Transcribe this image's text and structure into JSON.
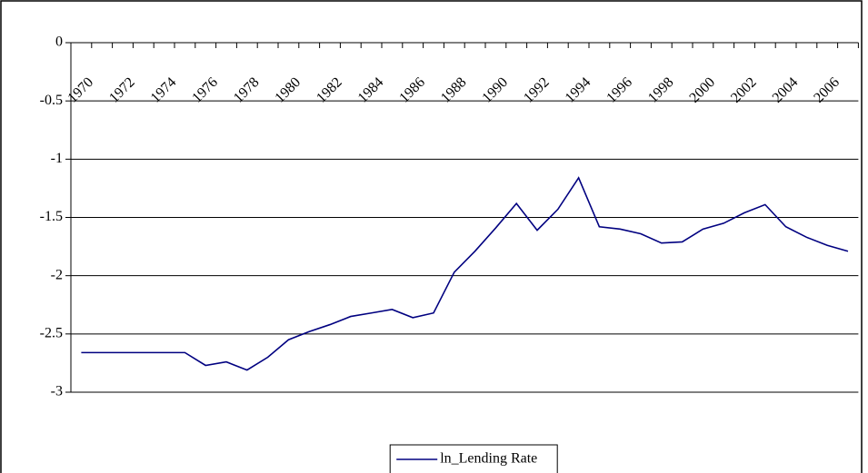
{
  "chart_data": {
    "type": "line",
    "categories": [
      "1970",
      null,
      "1972",
      null,
      "1974",
      null,
      "1976",
      null,
      "1978",
      null,
      "1980",
      null,
      "1982",
      null,
      "1984",
      null,
      "1986",
      null,
      "1988",
      null,
      "1990",
      null,
      "1992",
      null,
      "1994",
      null,
      "1996",
      null,
      "1998",
      null,
      "2000",
      null,
      "2002",
      null,
      "2004",
      null,
      "2006",
      null
    ],
    "series": [
      {
        "name": "ln_Lending Rate",
        "color": "#000080",
        "values": [
          -2.66,
          -2.66,
          -2.66,
          -2.66,
          -2.66,
          -2.66,
          -2.77,
          -2.74,
          -2.81,
          -2.7,
          -2.55,
          -2.48,
          -2.42,
          -2.35,
          -2.32,
          -2.29,
          -2.36,
          -2.32,
          -1.97,
          -1.79,
          -1.59,
          -1.38,
          -1.61,
          -1.43,
          -1.16,
          -1.58,
          -1.6,
          -1.64,
          -1.72,
          -1.71,
          -1.6,
          -1.55,
          -1.46,
          -1.39,
          -1.58,
          -1.67,
          -1.74,
          -1.79
        ]
      }
    ],
    "ylim": [
      -3,
      0
    ],
    "yticks": [
      0,
      -0.5,
      -1,
      -1.5,
      -2,
      -2.5,
      -3
    ],
    "grid": true,
    "legend": "bottom"
  }
}
